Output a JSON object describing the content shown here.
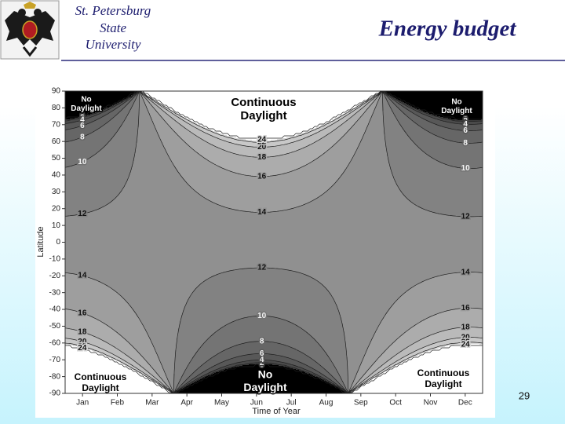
{
  "header": {
    "institution": [
      "St. Petersburg",
      "State",
      "University"
    ],
    "title": "Energy budget"
  },
  "chart_data": {
    "type": "contour",
    "xlabel": "Time of Year",
    "ylabel": "Latitude",
    "categories": [
      "Jan",
      "Feb",
      "Mar",
      "Apr",
      "May",
      "Jun",
      "Jul",
      "Aug",
      "Sep",
      "Oct",
      "Nov",
      "Dec"
    ],
    "ylim": [
      -90,
      90
    ],
    "yticks": [
      -90,
      -80,
      -70,
      -60,
      -50,
      -40,
      -30,
      -20,
      -10,
      0,
      10,
      20,
      30,
      40,
      50,
      60,
      70,
      80,
      90
    ],
    "levels": [
      0,
      2,
      4,
      6,
      8,
      10,
      12,
      14,
      16,
      18,
      20,
      22,
      24
    ],
    "annotations": [
      [
        "No",
        "Daylight"
      ],
      [
        "Continuous",
        "Daylight"
      ],
      [
        "No",
        "Daylight"
      ],
      [
        "Continuous",
        "Daylight"
      ],
      [
        "No",
        "Daylight"
      ],
      [
        "Continuous",
        "Daylight"
      ]
    ]
  },
  "page_number": "29"
}
